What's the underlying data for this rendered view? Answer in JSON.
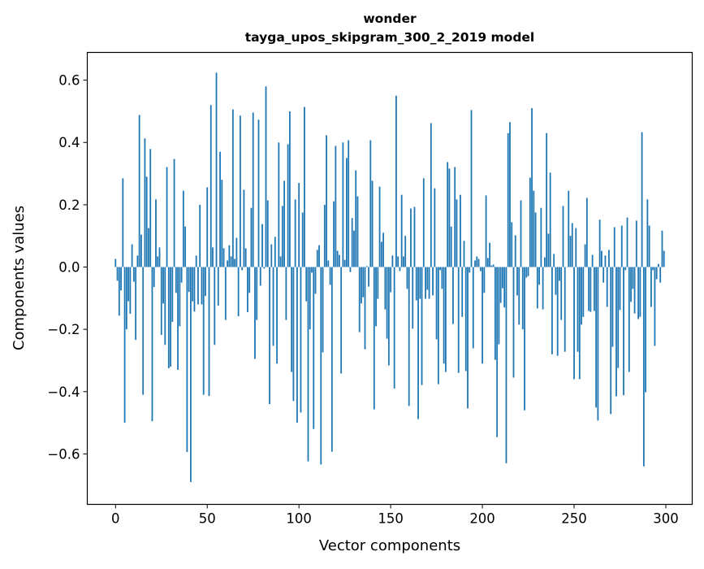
{
  "chart_data": {
    "type": "bar",
    "title": "wonder",
    "subtitle": "tayga_upos_skipgram_300_2_2019 model",
    "xlabel": "Vector components",
    "ylabel": "Components values",
    "xlim": [
      -15.4,
      314.4
    ],
    "ylim": [
      -0.762,
      0.689
    ],
    "xticks": [
      0,
      50,
      100,
      150,
      200,
      250,
      300
    ],
    "xtick_labels": [
      "0",
      "50",
      "100",
      "150",
      "200",
      "250",
      "300"
    ],
    "yticks": [
      -0.6,
      -0.4,
      -0.2,
      0.0,
      0.2,
      0.4,
      0.6
    ],
    "ytick_labels": [
      "−0.6",
      "−0.4",
      "−0.2",
      "0.0",
      "0.2",
      "0.4",
      "0.6"
    ],
    "grid": false,
    "bar_color": "#1f77b4",
    "values": [
      0.026,
      -0.044,
      -0.156,
      -0.075,
      0.285,
      -0.5,
      -0.2,
      -0.11,
      -0.15,
      0.073,
      -0.047,
      -0.234,
      0.037,
      0.488,
      0.104,
      -0.41,
      0.413,
      0.29,
      0.125,
      0.379,
      -0.495,
      -0.064,
      0.217,
      0.034,
      0.063,
      -0.218,
      -0.117,
      -0.25,
      0.321,
      -0.325,
      -0.32,
      -0.176,
      0.347,
      -0.083,
      -0.33,
      -0.19,
      -0.05,
      0.245,
      0.13,
      -0.594,
      -0.08,
      -0.69,
      -0.11,
      -0.143,
      0.037,
      -0.12,
      0.2,
      -0.12,
      -0.41,
      -0.093,
      0.256,
      -0.414,
      0.52,
      0.063,
      -0.25,
      0.624,
      -0.124,
      0.37,
      0.28,
      0.06,
      -0.17,
      0.021,
      0.07,
      0.034,
      0.506,
      0.026,
      0.094,
      -0.158,
      0.486,
      -0.01,
      0.248,
      0.06,
      -0.145,
      -0.083,
      0.19,
      0.496,
      -0.295,
      -0.17,
      0.473,
      -0.06,
      0.138,
      -0.005,
      0.58,
      0.214,
      -0.44,
      0.073,
      -0.253,
      0.097,
      -0.31,
      0.4,
      0.034,
      0.196,
      0.277,
      -0.17,
      0.394,
      0.5,
      -0.337,
      -0.43,
      0.217,
      -0.5,
      0.27,
      -0.467,
      0.175,
      0.514,
      -0.11,
      -0.624,
      -0.2,
      -0.018,
      -0.52,
      -0.086,
      0.055,
      0.07,
      -0.634,
      -0.274,
      0.2,
      0.423,
      0.021,
      -0.057,
      -0.593,
      0.211,
      0.389,
      0.052,
      0.039,
      -0.342,
      0.4,
      0.023,
      0.35,
      0.407,
      -0.016,
      0.157,
      0.117,
      0.31,
      0.227,
      -0.209,
      -0.117,
      -0.097,
      -0.264,
      0.003,
      -0.063,
      0.407,
      0.277,
      -0.457,
      -0.19,
      -0.102,
      0.258,
      0.081,
      0.11,
      -0.136,
      -0.23,
      -0.316,
      -0.081,
      0.037,
      -0.39,
      0.55,
      0.034,
      -0.013,
      0.232,
      0.034,
      0.1,
      -0.07,
      -0.446,
      0.188,
      -0.198,
      0.193,
      -0.107,
      -0.488,
      -0.102,
      -0.379,
      0.285,
      -0.102,
      -0.073,
      -0.102,
      0.462,
      -0.091,
      0.253,
      -0.232,
      -0.376,
      -0.01,
      -0.07,
      -0.31,
      -0.337,
      0.337,
      0.316,
      0.13,
      -0.183,
      0.321,
      0.217,
      -0.34,
      0.232,
      -0.16,
      0.084,
      -0.334,
      -0.454,
      -0.018,
      0.504,
      -0.261,
      0.021,
      0.034,
      0.026,
      -0.013,
      -0.31,
      -0.083,
      0.23,
      0.029,
      0.078,
      0.005,
      0.008,
      -0.298,
      -0.546,
      -0.248,
      -0.115,
      -0.068,
      -0.13,
      -0.63,
      0.43,
      0.465,
      0.144,
      -0.355,
      0.102,
      -0.091,
      -0.185,
      0.214,
      -0.2,
      -0.46,
      -0.034,
      -0.029,
      0.287,
      0.51,
      0.245,
      0.175,
      -0.133,
      -0.057,
      0.19,
      -0.136,
      0.031,
      0.43,
      0.107,
      0.303,
      -0.28,
      0.042,
      -0.089,
      -0.285,
      -0.044,
      -0.17,
      0.196,
      -0.272,
      0.0,
      0.245,
      0.1,
      0.141,
      -0.36,
      0.125,
      -0.272,
      -0.36,
      -0.185,
      -0.16,
      0.073,
      0.222,
      -0.141,
      -0.144,
      0.039,
      -0.141,
      -0.451,
      -0.493,
      0.152,
      0.052,
      -0.05,
      0.037,
      -0.128,
      0.055,
      -0.472,
      -0.256,
      0.128,
      -0.415,
      -0.324,
      -0.138,
      0.133,
      -0.412,
      -0.01,
      0.159,
      -0.337,
      -0.112,
      -0.07,
      -0.149,
      0.149,
      -0.167,
      -0.16,
      0.433,
      -0.64,
      -0.402,
      0.217,
      0.133,
      -0.128,
      -0.01,
      -0.253,
      -0.039,
      0.01,
      -0.05,
      0.117,
      0.052
    ]
  }
}
